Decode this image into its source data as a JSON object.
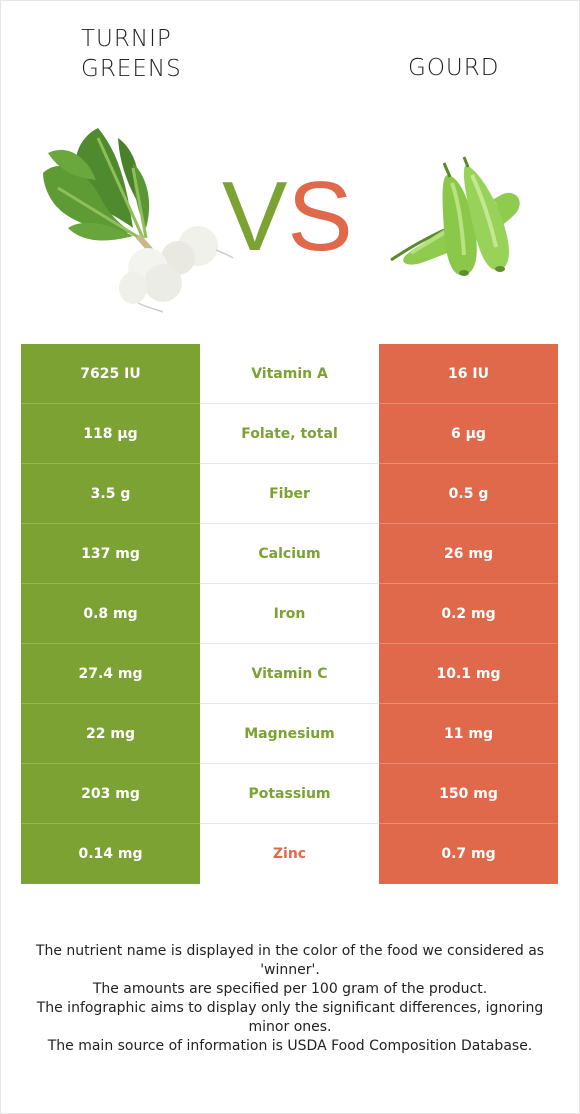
{
  "left_food": {
    "name": "TURNIP GREENS",
    "color": "#7ba232",
    "image": "turnip-greens-image"
  },
  "right_food": {
    "name": "GOURD",
    "color": "#e0694b",
    "image": "gourd-image"
  },
  "vs": {
    "v": "V",
    "s": "S"
  },
  "rows": [
    {
      "left": "7625 IU",
      "nutrient": "Vitamin A",
      "right": "16 IU",
      "winner": "left"
    },
    {
      "left": "118 µg",
      "nutrient": "Folate, total",
      "right": "6 µg",
      "winner": "left"
    },
    {
      "left": "3.5 g",
      "nutrient": "Fiber",
      "right": "0.5 g",
      "winner": "left"
    },
    {
      "left": "137 mg",
      "nutrient": "Calcium",
      "right": "26 mg",
      "winner": "left"
    },
    {
      "left": "0.8 mg",
      "nutrient": "Iron",
      "right": "0.2 mg",
      "winner": "left"
    },
    {
      "left": "27.4 mg",
      "nutrient": "Vitamin C",
      "right": "10.1 mg",
      "winner": "left"
    },
    {
      "left": "22 mg",
      "nutrient": "Magnesium",
      "right": "11 mg",
      "winner": "left"
    },
    {
      "left": "203 mg",
      "nutrient": "Potassium",
      "right": "150 mg",
      "winner": "left"
    },
    {
      "left": "0.14 mg",
      "nutrient": "Zinc",
      "right": "0.7 mg",
      "winner": "right"
    }
  ],
  "footer": [
    "The nutrient name is displayed in the color of the food we considered as 'winner'.",
    "The amounts are specified per 100 gram of the product.",
    "The infographic aims to display only the significant differences, ignoring minor ones.",
    "The main source of information is USDA Food Composition Database."
  ]
}
